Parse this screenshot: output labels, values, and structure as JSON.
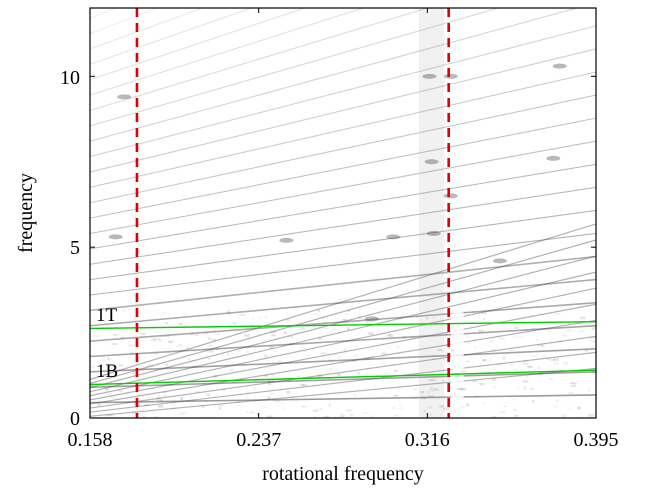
{
  "chart_data": {
    "type": "heatmap",
    "title": "",
    "xlabel": "rotational frequency",
    "ylabel": "frequency",
    "xlim": [
      0.158,
      0.395
    ],
    "ylim": [
      0,
      12
    ],
    "x_ticks": [
      "0.158",
      "0.237",
      "0.316",
      "0.395"
    ],
    "x_tick_values": [
      0.158,
      0.237,
      0.316,
      0.395
    ],
    "y_ticks": [
      "0",
      "5",
      "10"
    ],
    "y_tick_values": [
      0,
      5,
      10
    ],
    "colormap": "white-to-black (grayscale intensity)",
    "vertical_markers": [
      {
        "x": 0.18,
        "color": "#dd0000",
        "style": "dashed"
      },
      {
        "x": 0.326,
        "color": "#dd0000",
        "style": "dashed"
      }
    ],
    "resonance_lines": [
      {
        "label": "1T",
        "color": "#00cc00",
        "x": [
          0.158,
          0.395
        ],
        "y": [
          2.62,
          2.82
        ]
      },
      {
        "label": "1B",
        "color": "#00cc00",
        "x": [
          0.158,
          0.395
        ],
        "y": [
          0.98,
          1.4
        ]
      }
    ]
  }
}
